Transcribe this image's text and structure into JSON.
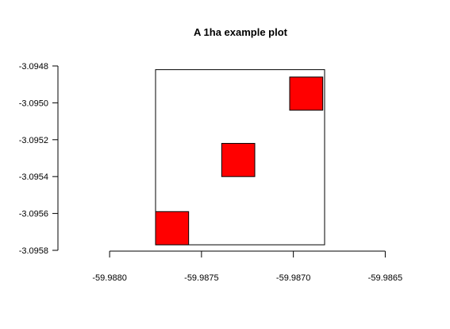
{
  "chart_data": {
    "type": "rect",
    "title": "A 1ha example plot",
    "xlabel": "",
    "ylabel": "",
    "xlim": [
      -59.98775,
      -59.98683
    ],
    "ylim": [
      -3.0958,
      -3.0948
    ],
    "x_ticks": [
      -59.988,
      -59.9875,
      -59.987,
      -59.9865
    ],
    "x_tick_labels": [
      "-59.9880",
      "-59.9875",
      "-59.9870",
      "-59.9865"
    ],
    "y_ticks": [
      -3.0958,
      -3.0956,
      -3.0954,
      -3.0952,
      -3.095,
      -3.0948
    ],
    "y_tick_labels": [
      "-3.0958",
      "-3.0956",
      "-3.0954",
      "-3.0952",
      "-3.0950",
      "-3.0948"
    ],
    "plot_boundary": {
      "xmin": -59.98775,
      "xmax": -59.98683,
      "ymin": -3.09577,
      "ymax": -3.09482
    },
    "rects": [
      {
        "xmin": -59.98775,
        "xmax": -59.98757,
        "ymin": -3.09577,
        "ymax": -3.09559
      },
      {
        "xmin": -59.98739,
        "xmax": -59.98721,
        "ymin": -3.0954,
        "ymax": -3.09522
      },
      {
        "xmin": -59.98702,
        "xmax": -59.98684,
        "ymin": -3.09504,
        "ymax": -3.09486
      }
    ],
    "fill_color": "#ff0000",
    "stroke_color": "#000000",
    "grid": false,
    "legend": false
  }
}
